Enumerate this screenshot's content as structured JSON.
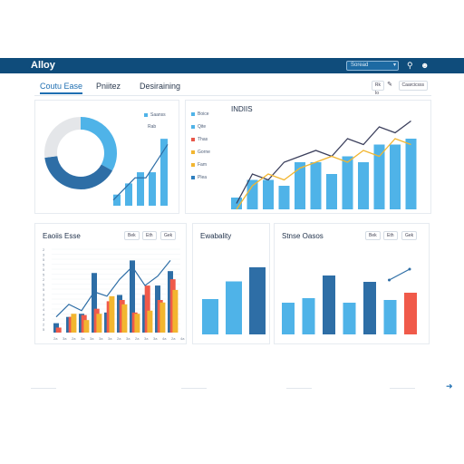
{
  "app": {
    "title": "Alloy"
  },
  "search": {
    "placeholder": "Soread"
  },
  "header_icons": [
    "search-icon",
    "user-icon"
  ],
  "tabs": [
    {
      "label": "Coutu Ease",
      "active": true
    },
    {
      "label": "Pniitez",
      "active": false
    },
    {
      "label": "Desiraining",
      "active": false
    }
  ],
  "toolbar": {
    "btn1": "Rk  Io",
    "btn2": "Caarcicsss"
  },
  "panels": {
    "overview": {
      "legend_label": "Saanss",
      "series_legend": [
        "Boice",
        "Qite",
        "Thas",
        "Gorne",
        "Fam",
        "Plea"
      ],
      "series_colors": [
        "#4fb3e8",
        "#4fb3e8",
        "#e8574a",
        "#f2b630",
        "#f2b630",
        "#2e7fbf"
      ]
    },
    "indices": {
      "title": "INDIIS"
    },
    "bottom_left": {
      "title": "Eaoiis Esse",
      "buttons": [
        "Bek",
        "Eth",
        "Gek"
      ]
    },
    "bottom_mid": {
      "title": "Ewabality"
    },
    "bottom_right": {
      "title": "Stnse Oasos",
      "buttons": [
        "Bek",
        "Eth",
        "Gek"
      ]
    }
  },
  "colors": {
    "navy": "#0f4c7b",
    "blue": "#4fb3e8",
    "dark_blue": "#2e6ea6",
    "red": "#f05a4a",
    "yellow": "#f2b630",
    "orange": "#f5894a",
    "gray_ring": "#e4e6e9"
  },
  "chart_data": [
    {
      "type": "pie",
      "title": "",
      "values": [
        33,
        40,
        27
      ],
      "colors": [
        "#4fb3e8",
        "#2e6ea6",
        "#e4e6e9"
      ]
    },
    {
      "type": "bar",
      "title": "",
      "values": [
        2,
        4,
        6,
        6,
        12
      ],
      "line": [
        1,
        3,
        5,
        5,
        8,
        11
      ],
      "ylim": [
        0,
        13
      ]
    },
    {
      "type": "bar",
      "title": "INDIIS",
      "values": [
        2,
        5,
        5,
        4,
        8,
        8,
        6,
        9,
        8,
        11,
        11,
        12
      ],
      "series": [
        {
          "values": [
            1,
            6,
            5,
            8,
            9,
            10,
            9,
            12,
            11,
            14,
            13,
            15
          ]
        },
        {
          "values": [
            0,
            4,
            6,
            5,
            7,
            8,
            9,
            8,
            10,
            9,
            12,
            11
          ]
        }
      ],
      "ylim": [
        0,
        16
      ]
    },
    {
      "type": "bar",
      "title": "Eaoiis Esse",
      "ylabels": [
        "2",
        "3",
        "5",
        "5",
        "5",
        "5",
        "2",
        "5",
        "5",
        "3",
        "5",
        "2",
        "4",
        "4",
        "3",
        "2",
        "5"
      ],
      "xlabels": [
        "2a",
        "3a",
        "2a",
        "3a",
        "3a",
        "3a",
        "3a",
        "2a",
        "3a",
        "2a",
        "3a",
        "3a",
        "4a",
        "2a",
        "4a"
      ],
      "series": [
        {
          "values": [
            1.5,
            2.5,
            3.0,
            9.5,
            3.2,
            6.0,
            11.5,
            6.0,
            7.5,
            9.8
          ]
        },
        {
          "values": [
            0.8,
            2.5,
            2.8,
            3.8,
            5.0,
            5.2,
            3.2,
            7.5,
            5.2,
            8.5
          ]
        },
        {
          "values": [
            0.0,
            3.0,
            2.0,
            3.0,
            5.8,
            4.5,
            3.0,
            3.5,
            4.8,
            6.8
          ]
        }
      ],
      "line": [
        2.5,
        4.5,
        3.5,
        6.5,
        5.8,
        8.5,
        10.5,
        7.5,
        9.0,
        11.5
      ],
      "ylim": [
        0,
        13
      ]
    },
    {
      "type": "bar",
      "title": "Ewabality",
      "values": [
        5,
        7.5,
        9.5
      ],
      "colors": [
        "#4fb3e8",
        "#4fb3e8",
        "#2e6ea6"
      ],
      "ylim": [
        0,
        10
      ]
    },
    {
      "type": "bar",
      "title": "Stnse Oasos",
      "values": [
        3.5,
        4,
        6.5,
        3.5,
        5.8,
        3.8,
        4.6
      ],
      "colors": [
        "#4fb3e8",
        "#4fb3e8",
        "#2e6ea6",
        "#4fb3e8",
        "#2e6ea6",
        "#4fb3e8",
        "#f05a4a"
      ],
      "line": [
        4.6,
        5.8
      ],
      "ylim": [
        0,
        7
      ]
    }
  ]
}
